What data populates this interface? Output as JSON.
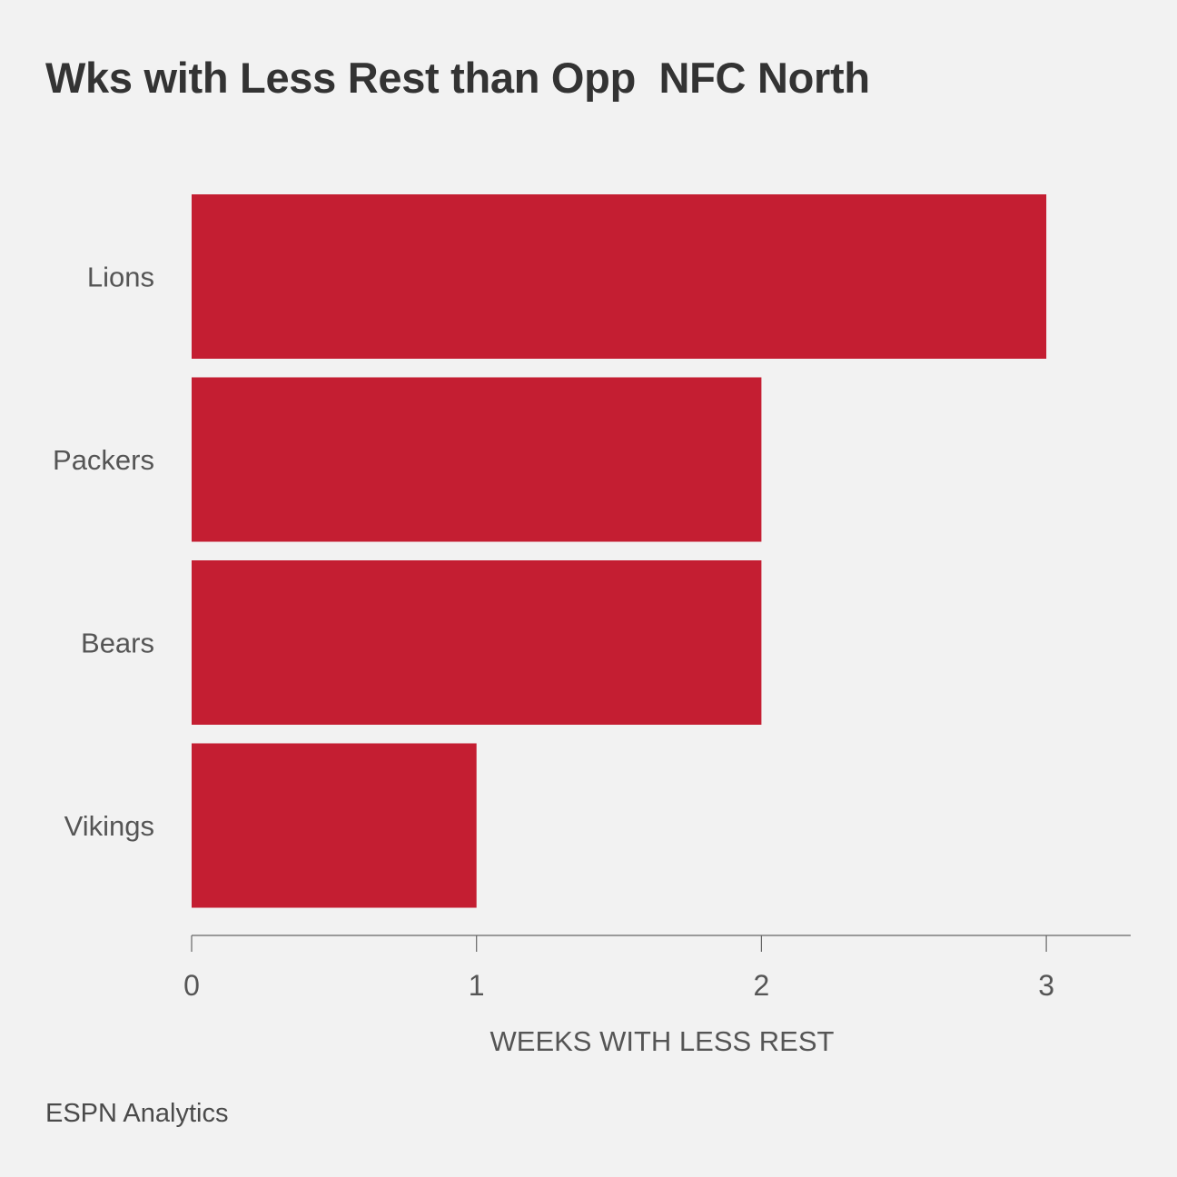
{
  "title": "Wks with Less Rest than Opp  NFC North",
  "source": "ESPN Analytics",
  "colors": {
    "bar": "#c41e32",
    "background": "#f2f2f2",
    "axis": "#666666"
  },
  "chart_data": {
    "type": "bar",
    "orientation": "horizontal",
    "title": "Wks with Less Rest than Opp  NFC North",
    "categories": [
      "Lions",
      "Packers",
      "Bears",
      "Vikings"
    ],
    "values": [
      3,
      2,
      2,
      1
    ],
    "xlabel": "WEEKS WITH LESS REST",
    "ylabel": "",
    "xlim": [
      0,
      3.3
    ],
    "xticks": [
      0,
      1,
      2,
      3
    ],
    "grid": false,
    "legend": "none"
  }
}
